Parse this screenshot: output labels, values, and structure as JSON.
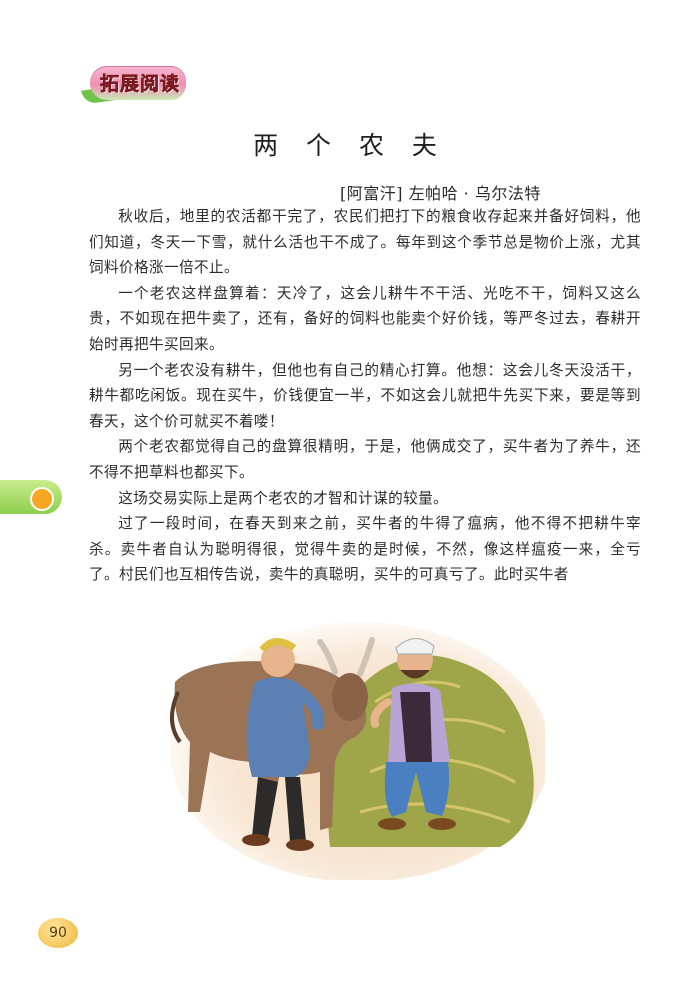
{
  "badge": {
    "label": "拓展阅读"
  },
  "title": "两 个 农 夫",
  "author": "[阿富汗] 左帕哈 · 乌尔法特",
  "paragraphs": [
    "秋收后，地里的农活都干完了，农民们把打下的粮食收存起来并备好饲料，他们知道，冬天一下雪，就什么活也干不成了。每年到这个季节总是物价上涨，尤其饲料价格涨一倍不止。",
    "一个老农这样盘算着：天冷了，这会儿耕牛不干活、光吃不干，饲料又这么贵，不如现在把牛卖了，还有，备好的饲料也能卖个好价钱，等严冬过去，春耕开始时再把牛买回来。",
    "另一个老农没有耕牛，但他也有自己的精心打算。他想：这会儿冬天没活干，耕牛都吃闲饭。现在买牛，价钱便宜一半，不如这会儿就把牛先买下来，要是等到春天，这个价可就买不着喽！",
    "两个老农都觉得自己的盘算很精明，于是，他俩成交了，买牛者为了养牛，还不得不把草料也都买下。",
    "这场交易实际上是两个老农的才智和计谋的较量。",
    "过了一段时间，在春天到来之前，买牛者的牛得了瘟病，他不得不把耕牛宰杀。卖牛者自认为聪明得很，觉得牛卖的是时候，不然，像这样瘟疫一来，全亏了。村民们也互相传告说，卖牛的真聪明，买牛的可真亏了。此时买牛者"
  ],
  "page_number": "90"
}
